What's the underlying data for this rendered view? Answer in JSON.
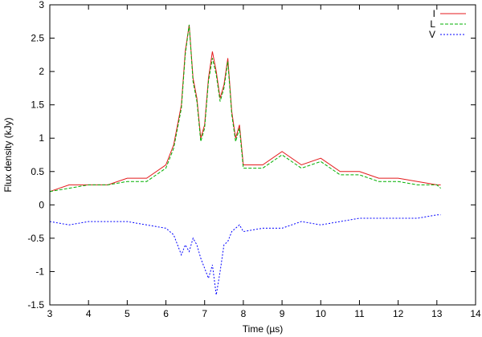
{
  "chart_data": {
    "type": "line",
    "title": "",
    "xlabel": "Time (µs)",
    "ylabel": "Flux density (kJy)",
    "xlim": [
      3,
      14
    ],
    "ylim": [
      -1.5,
      3
    ],
    "xticks": [
      "3",
      "4",
      "5",
      "6",
      "7",
      "8",
      "9",
      "10",
      "11",
      "12",
      "13",
      "14"
    ],
    "yticks": [
      "-1.5",
      "-1",
      "-0.5",
      "0",
      "0.5",
      "1",
      "1.5",
      "2",
      "2.5",
      "3"
    ],
    "grid": false,
    "legend_position": "top-right",
    "series": [
      {
        "name": "I",
        "color": "#e41a1c",
        "style": "solid",
        "x": [
          3.0,
          3.5,
          4.0,
          4.5,
          5.0,
          5.5,
          6.0,
          6.2,
          6.4,
          6.5,
          6.6,
          6.7,
          6.8,
          6.9,
          7.0,
          7.1,
          7.2,
          7.3,
          7.4,
          7.5,
          7.6,
          7.7,
          7.8,
          7.9,
          8.0,
          8.5,
          9.0,
          9.5,
          10.0,
          10.5,
          11.0,
          11.5,
          12.0,
          12.5,
          13.0,
          13.1
        ],
        "y": [
          0.2,
          0.3,
          0.3,
          0.3,
          0.4,
          0.4,
          0.6,
          0.9,
          1.5,
          2.3,
          2.7,
          1.9,
          1.6,
          1.0,
          1.2,
          1.9,
          2.3,
          2.0,
          1.6,
          1.8,
          2.2,
          1.4,
          1.0,
          1.2,
          0.6,
          0.6,
          0.8,
          0.6,
          0.7,
          0.5,
          0.5,
          0.4,
          0.4,
          0.35,
          0.3,
          0.3
        ]
      },
      {
        "name": "L",
        "color": "#00b000",
        "style": "dashed",
        "x": [
          3.0,
          3.5,
          4.0,
          4.5,
          5.0,
          5.5,
          6.0,
          6.2,
          6.4,
          6.5,
          6.6,
          6.7,
          6.8,
          6.9,
          7.0,
          7.1,
          7.2,
          7.3,
          7.4,
          7.5,
          7.6,
          7.7,
          7.8,
          7.9,
          8.0,
          8.5,
          9.0,
          9.5,
          10.0,
          10.5,
          11.0,
          11.5,
          12.0,
          12.5,
          13.0,
          13.1
        ],
        "y": [
          0.2,
          0.25,
          0.3,
          0.3,
          0.35,
          0.35,
          0.55,
          0.85,
          1.45,
          2.25,
          2.7,
          1.85,
          1.55,
          0.95,
          1.15,
          1.85,
          2.2,
          1.95,
          1.55,
          1.75,
          2.15,
          1.35,
          0.95,
          1.15,
          0.55,
          0.55,
          0.75,
          0.55,
          0.65,
          0.45,
          0.45,
          0.35,
          0.35,
          0.3,
          0.3,
          0.25
        ]
      },
      {
        "name": "V",
        "color": "#0000ff",
        "style": "dotted",
        "x": [
          3.0,
          3.5,
          4.0,
          4.5,
          5.0,
          5.5,
          6.0,
          6.2,
          6.4,
          6.5,
          6.6,
          6.7,
          6.8,
          6.9,
          7.0,
          7.1,
          7.2,
          7.3,
          7.4,
          7.5,
          7.6,
          7.7,
          7.8,
          7.9,
          8.0,
          8.5,
          9.0,
          9.5,
          10.0,
          10.5,
          11.0,
          11.5,
          12.0,
          12.5,
          13.0,
          13.1
        ],
        "y": [
          -0.25,
          -0.3,
          -0.25,
          -0.25,
          -0.25,
          -0.3,
          -0.35,
          -0.45,
          -0.75,
          -0.6,
          -0.7,
          -0.5,
          -0.6,
          -0.8,
          -0.95,
          -1.1,
          -0.9,
          -1.35,
          -1.0,
          -0.6,
          -0.55,
          -0.4,
          -0.35,
          -0.3,
          -0.4,
          -0.35,
          -0.35,
          -0.25,
          -0.3,
          -0.25,
          -0.2,
          -0.2,
          -0.2,
          -0.2,
          -0.15,
          -0.15
        ]
      }
    ]
  }
}
